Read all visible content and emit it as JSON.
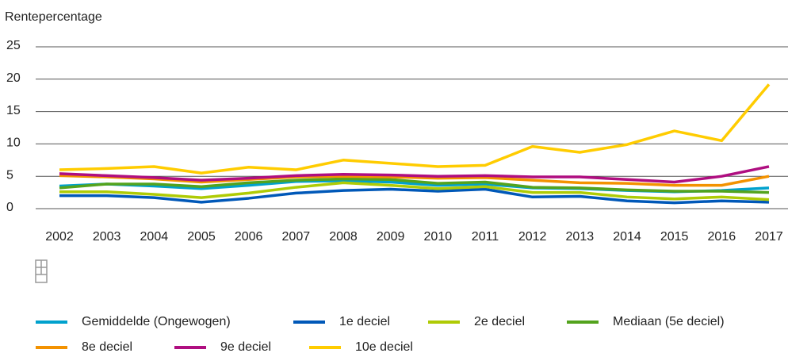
{
  "chart_data": {
    "type": "line",
    "y_label": "Rentepercentage",
    "categories": [
      "2002",
      "2003",
      "2004",
      "2005",
      "2006",
      "2007",
      "2008",
      "2009",
      "2010",
      "2011",
      "2012",
      "2013",
      "2014",
      "2015",
      "2016",
      "2017"
    ],
    "ylim": [
      0,
      25
    ],
    "yticks": [
      0,
      5,
      10,
      15,
      20,
      25
    ],
    "grid": true,
    "series": [
      {
        "name": "Gemiddelde (Ongewogen)",
        "color": "#00a1cd",
        "values": [
          3.5,
          3.8,
          3.5,
          3.1,
          3.6,
          4.2,
          4.3,
          4.1,
          3.6,
          3.8,
          3.2,
          3.1,
          2.8,
          2.6,
          2.8,
          3.2
        ]
      },
      {
        "name": "1e deciel",
        "color": "#0058b8",
        "values": [
          2.0,
          2.0,
          1.7,
          1.0,
          1.6,
          2.4,
          2.8,
          3.0,
          2.7,
          3.0,
          1.8,
          1.9,
          1.2,
          0.9,
          1.2,
          1.0
        ]
      },
      {
        "name": "2e deciel",
        "color": "#afcb05",
        "values": [
          2.6,
          2.6,
          2.2,
          1.7,
          2.4,
          3.3,
          4.0,
          3.6,
          3.1,
          3.4,
          2.5,
          2.5,
          1.8,
          1.5,
          1.8,
          1.4
        ]
      },
      {
        "name": "Mediaan (5e deciel)",
        "color": "#53a31d",
        "values": [
          3.2,
          3.8,
          3.8,
          3.4,
          4.0,
          4.4,
          4.6,
          4.5,
          3.9,
          4.1,
          3.3,
          3.2,
          2.9,
          2.7,
          2.7,
          2.5
        ]
      },
      {
        "name": "8e deciel",
        "color": "#f39200",
        "values": [
          5.1,
          4.9,
          4.6,
          4.1,
          4.5,
          4.9,
          5.0,
          4.9,
          4.7,
          4.8,
          4.4,
          4.0,
          3.9,
          3.6,
          3.6,
          5.0
        ]
      },
      {
        "name": "9e deciel",
        "color": "#af0e80",
        "values": [
          5.4,
          5.1,
          4.8,
          4.4,
          4.7,
          5.1,
          5.3,
          5.2,
          5.0,
          5.1,
          4.9,
          4.9,
          4.5,
          4.1,
          5.0,
          6.5
        ]
      },
      {
        "name": "10e deciel",
        "color": "#ffcc00",
        "values": [
          6.0,
          6.2,
          6.5,
          5.5,
          6.4,
          6.0,
          7.5,
          7.0,
          6.5,
          6.7,
          9.6,
          8.7,
          9.9,
          12.0,
          10.5,
          19.2
        ]
      }
    ]
  }
}
